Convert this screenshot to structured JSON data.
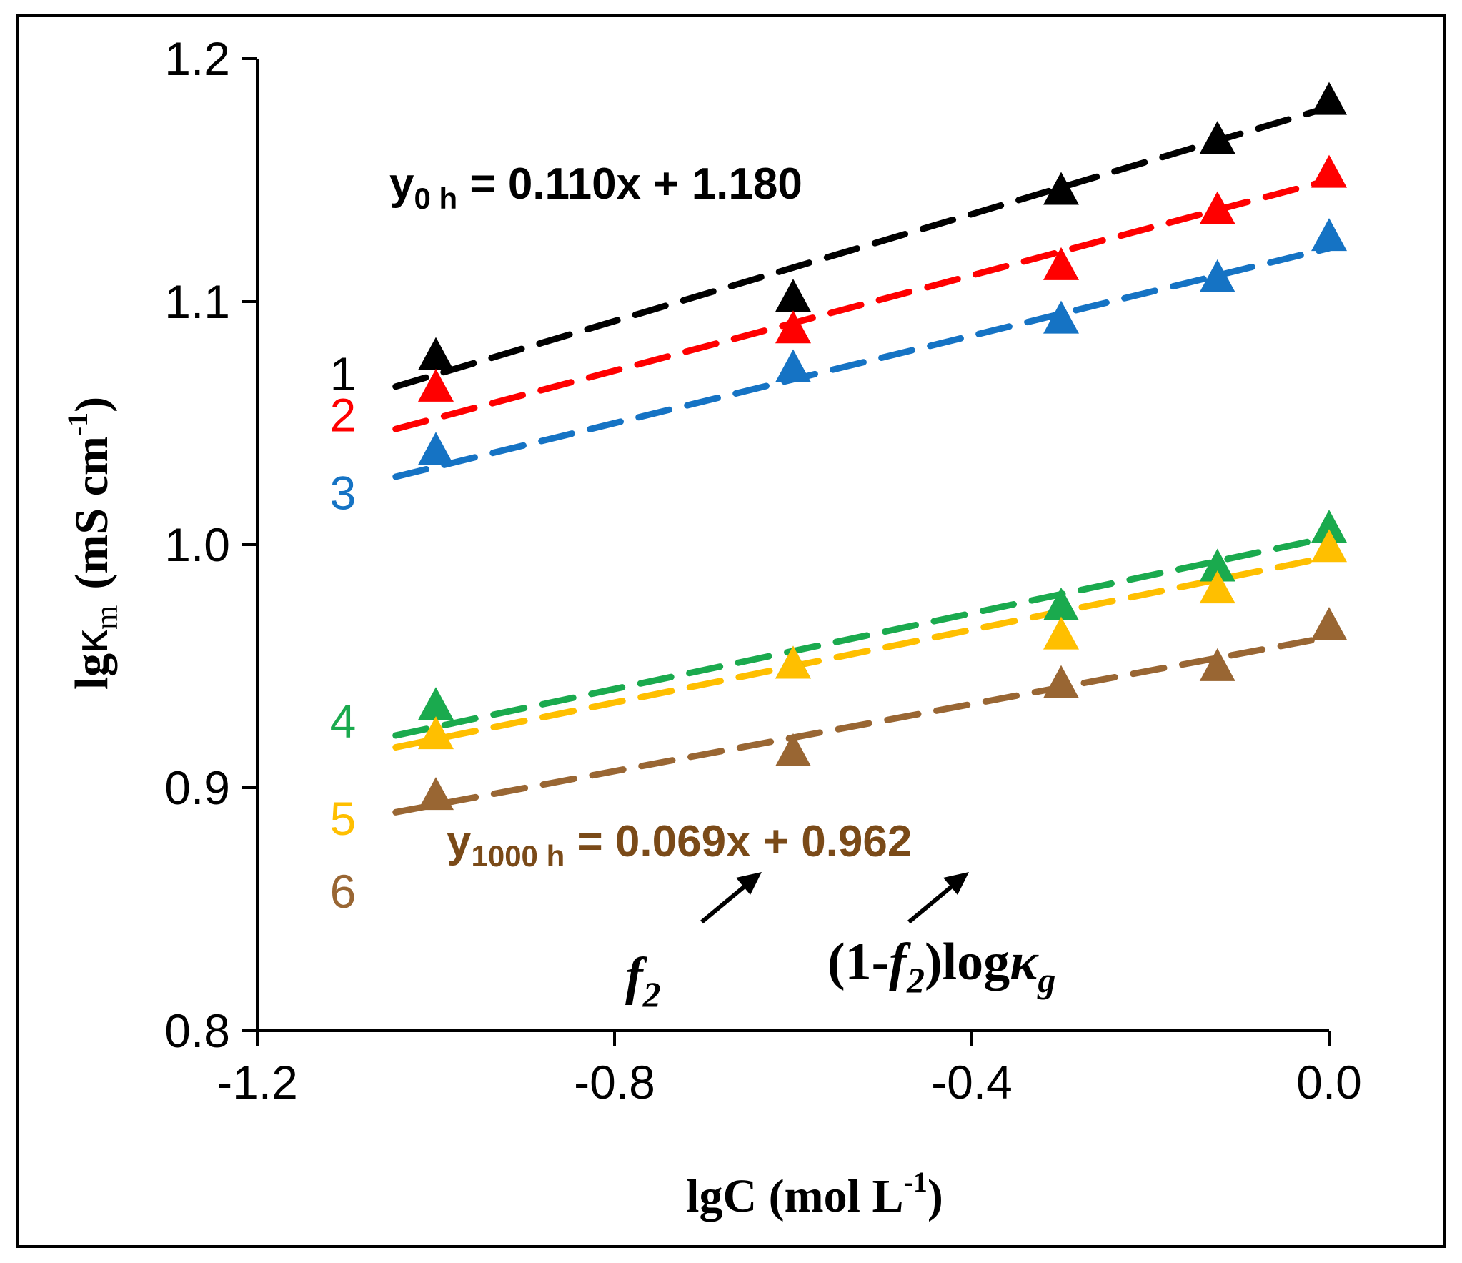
{
  "chart_data": {
    "type": "scatter",
    "title": "",
    "xlabel": {
      "main": "lgC (mol L",
      "sup": "-1",
      "close": ")"
    },
    "ylabel": {
      "main": "lg",
      "kappa": "κ",
      "sub": "m",
      "unit": "(mS cm",
      "sup": "-1",
      "close": ")"
    },
    "xlim": [
      -1.2,
      0.0
    ],
    "ylim": [
      0.8,
      1.2
    ],
    "xticks": [
      -1.2,
      -0.8,
      -0.4,
      0.0
    ],
    "xtick_labels": [
      "-1.2",
      "-0.8",
      "-0.4",
      "0.0"
    ],
    "yticks": [
      0.8,
      0.9,
      1.0,
      1.1,
      1.2
    ],
    "ytick_labels": [
      "0.8",
      "0.9",
      "1.0",
      "1.1",
      "1.2"
    ],
    "grid": false,
    "marker": "triangle",
    "trendline": "dashed-linear",
    "series": [
      {
        "name": "1",
        "color": "#000000",
        "x": [
          -1.0,
          -0.6,
          -0.3,
          -0.125,
          0.0
        ],
        "y": [
          1.077,
          1.101,
          1.145,
          1.166,
          1.182
        ],
        "trend": {
          "slope": 0.11,
          "intercept": 1.18
        }
      },
      {
        "name": "2",
        "color": "#ff0000",
        "x": [
          -1.0,
          -0.6,
          -0.3,
          -0.125,
          0.0
        ],
        "y": [
          1.064,
          1.088,
          1.114,
          1.137,
          1.152
        ],
        "trend": {
          "slope": 0.098,
          "intercept": 1.15
        }
      },
      {
        "name": "3",
        "color": "#1573c4",
        "x": [
          -1.0,
          -0.6,
          -0.3,
          -0.125,
          0.0
        ],
        "y": [
          1.038,
          1.072,
          1.092,
          1.109,
          1.126
        ],
        "trend": {
          "slope": 0.09,
          "intercept": 1.122
        }
      },
      {
        "name": "4",
        "color": "#1aaa4e",
        "x": [
          -1.0,
          -0.6,
          -0.3,
          -0.125,
          0.0
        ],
        "y": [
          0.933,
          0.95,
          0.974,
          0.99,
          1.006
        ],
        "trend": {
          "slope": 0.078,
          "intercept": 1.003
        }
      },
      {
        "name": "5",
        "color": "#ffbf00",
        "x": [
          -1.0,
          -0.6,
          -0.3,
          -0.125,
          0.0
        ],
        "y": [
          0.921,
          0.95,
          0.962,
          0.981,
          0.998
        ],
        "trend": {
          "slope": 0.075,
          "intercept": 0.995
        }
      },
      {
        "name": "6",
        "color": "#996633",
        "x": [
          -1.0,
          -0.6,
          -0.3,
          -0.125,
          0.0
        ],
        "y": [
          0.896,
          0.914,
          0.942,
          0.949,
          0.966
        ],
        "trend": {
          "slope": 0.069,
          "intercept": 0.962
        }
      }
    ],
    "equations": [
      {
        "y": "y",
        "sub": "0 h",
        "rest": " = 0.110x + 1.180",
        "color": "#000000"
      },
      {
        "y": "y",
        "sub": "1000 h",
        "rest": " = 0.069x + 0.962",
        "color": "#7a4a18"
      }
    ],
    "annotations": [
      {
        "text": "f",
        "sub": "2"
      },
      {
        "text": "(1-",
        "italic": "f",
        "sub": "2",
        "rest": ")log",
        "kappa": "κ",
        "kappa_sub": "g"
      }
    ]
  }
}
